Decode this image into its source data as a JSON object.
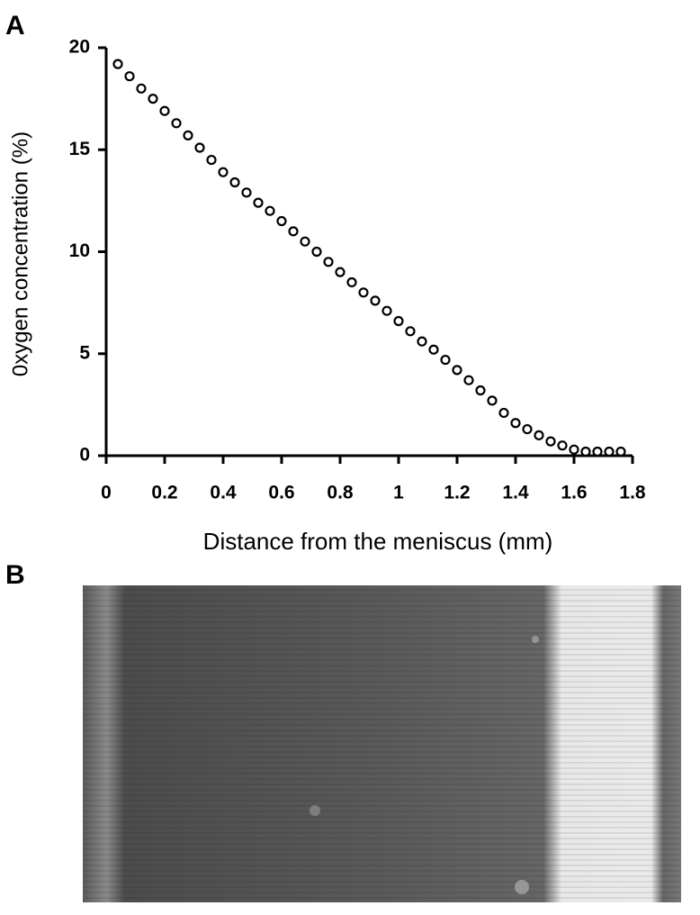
{
  "panels": [
    "A",
    "B"
  ],
  "chart_data": {
    "type": "scatter",
    "xlabel": "Distance from the meniscus (mm)",
    "ylabel": "0xygen concentration (%)",
    "x": [
      0.04,
      0.08,
      0.12,
      0.16,
      0.2,
      0.24,
      0.28,
      0.32,
      0.36,
      0.4,
      0.44,
      0.48,
      0.52,
      0.56,
      0.6,
      0.64,
      0.68,
      0.72,
      0.76,
      0.8,
      0.84,
      0.88,
      0.92,
      0.96,
      1.0,
      1.04,
      1.08,
      1.12,
      1.16,
      1.2,
      1.24,
      1.28,
      1.32,
      1.36,
      1.4,
      1.44,
      1.48,
      1.52,
      1.56,
      1.6,
      1.64,
      1.68,
      1.72,
      1.76
    ],
    "values": [
      19.2,
      18.6,
      18.0,
      17.5,
      16.9,
      16.3,
      15.7,
      15.1,
      14.5,
      13.9,
      13.4,
      12.9,
      12.4,
      12.0,
      11.5,
      11.0,
      10.5,
      10.0,
      9.5,
      9.0,
      8.5,
      8.0,
      7.6,
      7.1,
      6.6,
      6.1,
      5.6,
      5.2,
      4.7,
      4.2,
      3.7,
      3.2,
      2.7,
      2.1,
      1.6,
      1.3,
      1.0,
      0.7,
      0.5,
      0.3,
      0.2,
      0.2,
      0.2,
      0.2
    ],
    "color": "#000000",
    "xlim": [
      0,
      1.8
    ],
    "xticks": [
      0,
      0.2,
      0.4,
      0.6,
      0.8,
      1,
      1.2,
      1.4,
      1.6,
      1.8
    ],
    "ylim": [
      0,
      20
    ],
    "yticks": [
      0,
      5,
      10,
      15,
      20
    ]
  }
}
